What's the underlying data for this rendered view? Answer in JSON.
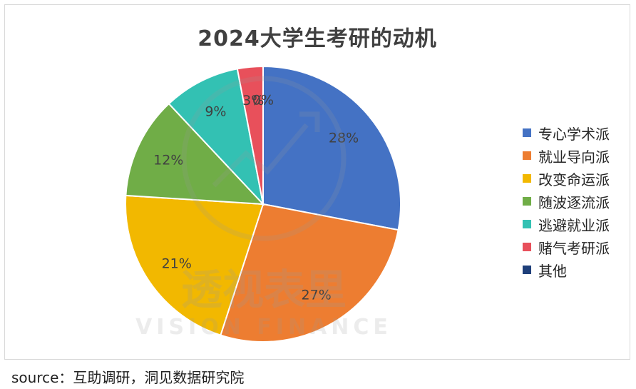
{
  "chart_data": {
    "type": "pie",
    "title": "2024大学生考研的动机",
    "categories": [
      "专心学术派",
      "就业导向派",
      "改变命运派",
      "随波逐流派",
      "逃避就业派",
      "赌气考研派",
      "其他"
    ],
    "values": [
      28,
      27,
      21,
      12,
      9,
      3,
      0
    ],
    "labels": [
      "28%",
      "27%",
      "21%",
      "12%",
      "9%",
      "3%",
      "0%"
    ],
    "colors": [
      "#4472C4",
      "#ED7D31",
      "#F2B800",
      "#70AD47",
      "#33C1B3",
      "#E8505B",
      "#1F3F7A"
    ],
    "legend_position": "right"
  },
  "source": "source：互助调研，洞见数据研究院",
  "watermark": {
    "text_cn": "透视表里",
    "text_en": "VISION FINANCE"
  }
}
